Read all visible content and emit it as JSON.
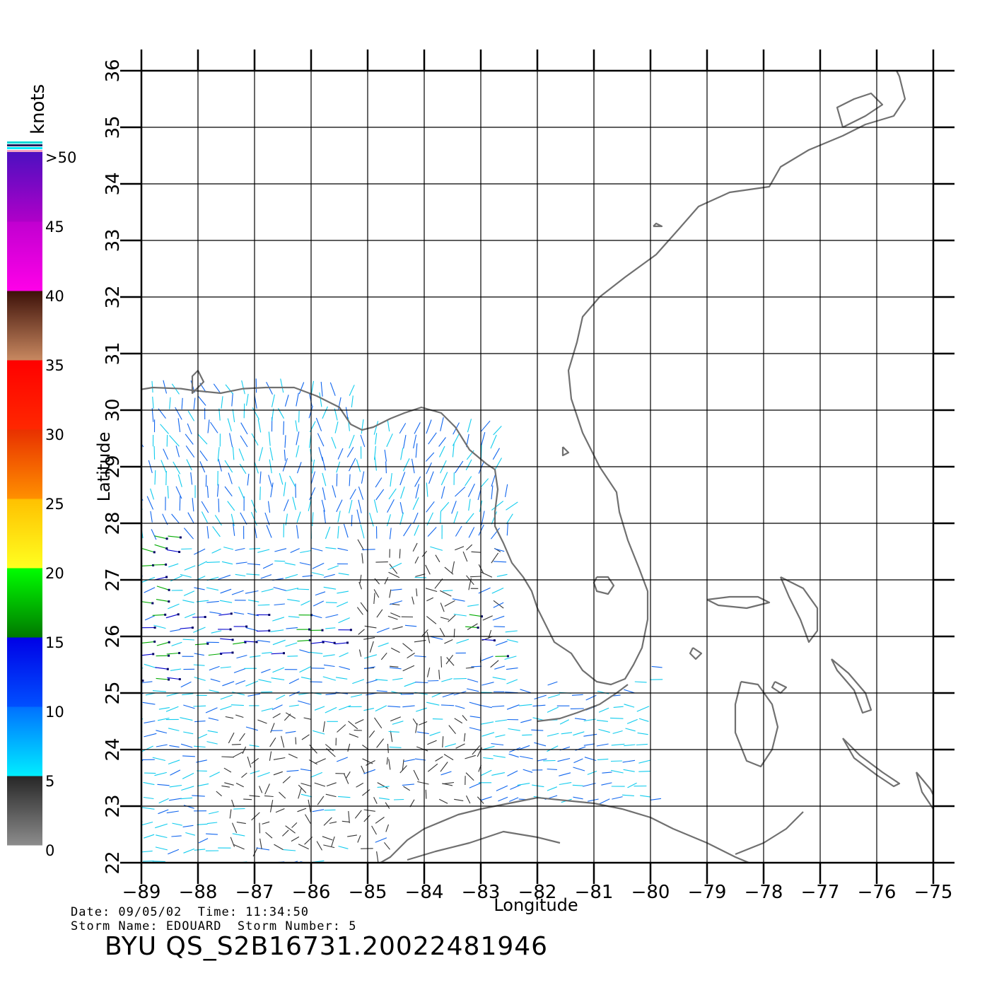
{
  "map": {
    "lon_range": [
      -89,
      -75
    ],
    "lat_range": [
      22,
      36
    ],
    "lon_ticks": [
      -89,
      -88,
      -87,
      -86,
      -85,
      -84,
      -83,
      -82,
      -81,
      -80,
      -79,
      -78,
      -77,
      -76,
      -75
    ],
    "lat_ticks": [
      22,
      23,
      24,
      25,
      26,
      27,
      28,
      29,
      30,
      31,
      32,
      33,
      34,
      35,
      36
    ],
    "lon_tick_labels": [
      "−89",
      "−88",
      "−87",
      "−86",
      "−85",
      "−84",
      "−83",
      "−82",
      "−81",
      "−80",
      "−79",
      "−78",
      "−77",
      "−76",
      "−75"
    ],
    "lat_tick_labels": [
      "22",
      "23",
      "24",
      "25",
      "26",
      "27",
      "28",
      "29",
      "30",
      "31",
      "32",
      "33",
      "34",
      "35",
      "36"
    ],
    "x_label": "Longitude",
    "y_label": "Latitude",
    "grid": true,
    "coast_color": "#707070"
  },
  "colorbar": {
    "title": "knots",
    "labels": [
      ">50",
      "45",
      "40",
      "35",
      "30",
      "25",
      "20",
      "15",
      "10",
      "5",
      "0"
    ],
    "bands": [
      {
        "from": 0,
        "to": 5,
        "colors": [
          "#8c8c8c",
          "#262626"
        ]
      },
      {
        "from": 5,
        "to": 10,
        "colors": [
          "#00eeff",
          "#0070ff"
        ]
      },
      {
        "from": 10,
        "to": 15,
        "colors": [
          "#0050ff",
          "#0000e6"
        ]
      },
      {
        "from": 15,
        "to": 20,
        "colors": [
          "#007800",
          "#00ff00"
        ]
      },
      {
        "from": 20,
        "to": 25,
        "colors": [
          "#ffff20",
          "#ffc000"
        ]
      },
      {
        "from": 25,
        "to": 30,
        "colors": [
          "#ff9000",
          "#e83000"
        ]
      },
      {
        "from": 30,
        "to": 35,
        "colors": [
          "#ff2800",
          "#ff0000"
        ]
      },
      {
        "from": 35,
        "to": 40,
        "colors": [
          "#c88860",
          "#3c1008"
        ]
      },
      {
        "from": 40,
        "to": 45,
        "colors": [
          "#ff00e8",
          "#c000d0"
        ]
      },
      {
        "from": 45,
        "to": 50,
        "colors": [
          "#b000c8",
          "#4c10c0"
        ]
      }
    ]
  },
  "info": {
    "date_line": "Date: 09/05/02  Time: 11:34:50",
    "storm_line": "Storm Name: EDOUARD  Storm Number: 5",
    "product_id": "BYU  QS_S2B16731.20022481946"
  },
  "wind_colors": {
    "calm": "#333333",
    "light": "#11ccee",
    "moderate": "#1166ee",
    "fresh": "#0000cc",
    "strong": "#00aa00"
  }
}
